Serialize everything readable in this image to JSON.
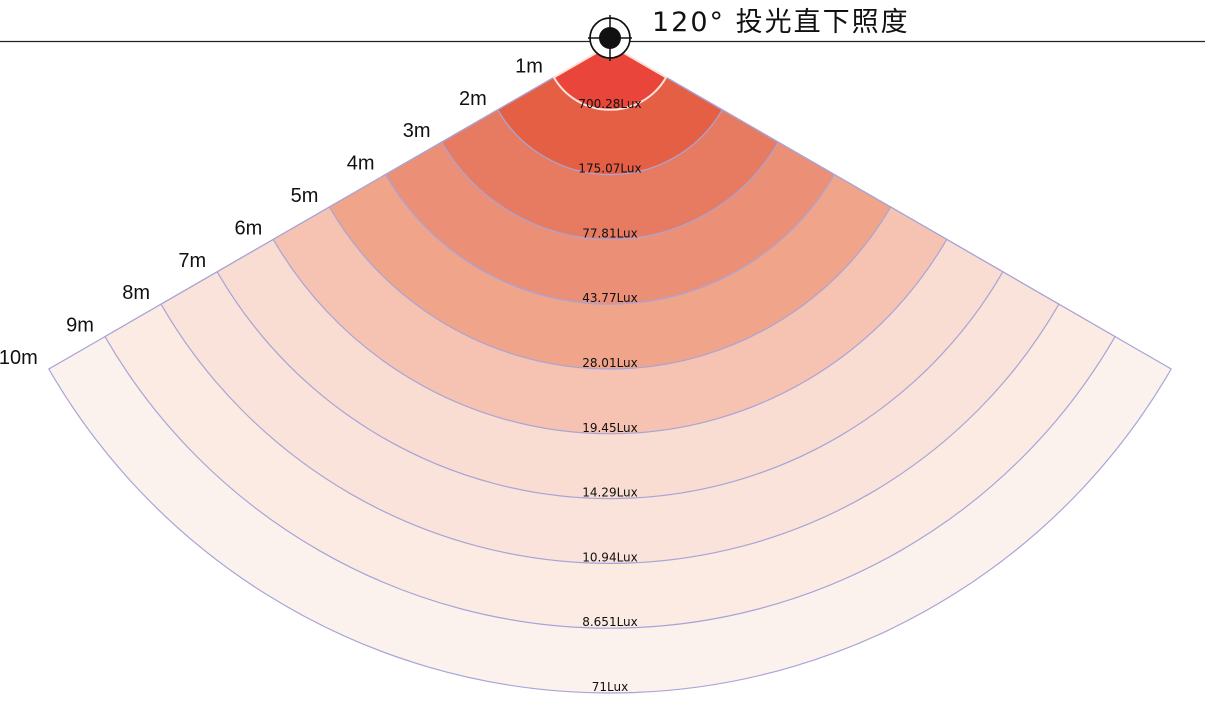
{
  "title": "120° 投光直下照度",
  "beam_angle_deg": 120,
  "rings": [
    {
      "distance": "1m",
      "lux": "700.28Lux",
      "color": "#e9453a"
    },
    {
      "distance": "2m",
      "lux": "175.07Lux",
      "color": "#e55f45"
    },
    {
      "distance": "3m",
      "lux": "77.81Lux",
      "color": "#e77b62"
    },
    {
      "distance": "4m",
      "lux": "43.77Lux",
      "color": "#eb8f77"
    },
    {
      "distance": "5m",
      "lux": "28.01Lux",
      "color": "#f0a58b"
    },
    {
      "distance": "6m",
      "lux": "19.45Lux",
      "color": "#f6c3b2"
    },
    {
      "distance": "7m",
      "lux": "14.29Lux",
      "color": "#f9ddd3"
    },
    {
      "distance": "8m",
      "lux": "10.94Lux",
      "color": "#fae3da"
    },
    {
      "distance": "9m",
      "lux": "8.651Lux",
      "color": "#fbebe3"
    },
    {
      "distance": "10m",
      "lux": "71Lux",
      "color": "#fbf2ee"
    }
  ],
  "colors": {
    "ring_stroke": "#a9a4d6",
    "outer_stroke": "#b1abd9",
    "inner_highlight": "#fbe3dc",
    "text": "#111111",
    "line": "#222222"
  },
  "icon": "lamp-crosshair-icon"
}
